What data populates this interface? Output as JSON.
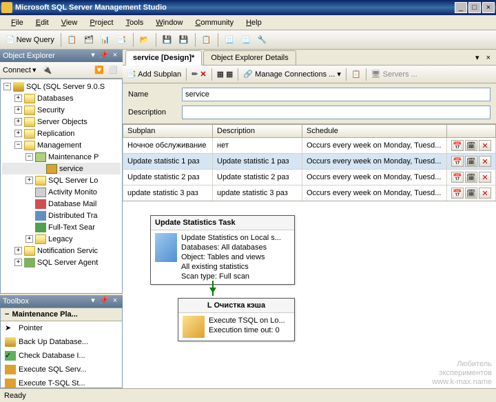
{
  "window": {
    "title": "Microsoft SQL Server Management Studio"
  },
  "menu": {
    "file": "File",
    "edit": "Edit",
    "view": "View",
    "project": "Project",
    "tools": "Tools",
    "window": "Window",
    "community": "Community",
    "help": "Help"
  },
  "toolbar": {
    "new_query": "New Query"
  },
  "object_explorer": {
    "title": "Object Explorer",
    "connect": "Connect",
    "root": "SQL (SQL Server 9.0.S",
    "nodes": {
      "databases": "Databases",
      "security": "Security",
      "server_objects": "Server Objects",
      "replication": "Replication",
      "management": "Management",
      "maintenance_plans": "Maintenance P",
      "service": "service",
      "sql_server_logs": "SQL Server Lo",
      "activity_monitor": "Activity Monito",
      "database_mail": "Database Mail",
      "distributed_tr": "Distributed Tra",
      "fulltext": "Full-Text Sear",
      "legacy": "Legacy",
      "notification": "Notification Servic",
      "sql_agent": "SQL Server Agent"
    }
  },
  "toolbox": {
    "title": "Toolbox",
    "category": "Maintenance Pla...",
    "items": {
      "pointer": "Pointer",
      "backup": "Back Up Database...",
      "check": "Check Database I...",
      "execute_sql_serv": "Execute SQL Serv...",
      "execute_tsql": "Execute T-SQL St..."
    }
  },
  "tabs": {
    "design": "service [Design]*",
    "details": "Object Explorer Details"
  },
  "design_toolbar": {
    "add_subplan": "Add Subplan",
    "manage_conn": "Manage Connections ...",
    "servers": "Servers ..."
  },
  "props": {
    "name_label": "Name",
    "name_value": "service",
    "desc_label": "Description",
    "desc_value": ""
  },
  "grid": {
    "headers": {
      "subplan": "Subplan",
      "description": "Description",
      "schedule": "Schedule"
    },
    "rows": [
      {
        "subplan": "Ночное обслуживание",
        "desc": "нет",
        "schedule": "Occurs every week on Monday, Tuesd...",
        "sel": false
      },
      {
        "subplan": "Update statistic 1 раз",
        "desc": "Update statistic 1 раз",
        "schedule": "Occurs every week on Monday, Tuesd...",
        "sel": true
      },
      {
        "subplan": "Update statistic 2 раз",
        "desc": "Update statistic 2 раз",
        "schedule": "Occurs every week on Monday, Tuesd...",
        "sel": false
      },
      {
        "subplan": "update statistic 3 раз",
        "desc": "update statistic 3 раз",
        "schedule": "Occurs every week on Monday, Tuesd...",
        "sel": false
      }
    ]
  },
  "task1": {
    "title": "Update Statistics Task",
    "lines": {
      "l1": "Update Statistics on Local s...",
      "l2": "Databases: All databases",
      "l3": "Object: Tables and views",
      "l4": "All existing statistics",
      "l5": "Scan type: Full scan"
    }
  },
  "task2": {
    "title": "L Очистка кэша",
    "lines": {
      "l1": "Execute TSQL on Lo...",
      "l2": "Execution time out: 0"
    }
  },
  "status": {
    "text": "Ready"
  },
  "watermark": {
    "l1": "Любитель",
    "l2": "экспериментов",
    "l3": "www.k-max.name"
  }
}
